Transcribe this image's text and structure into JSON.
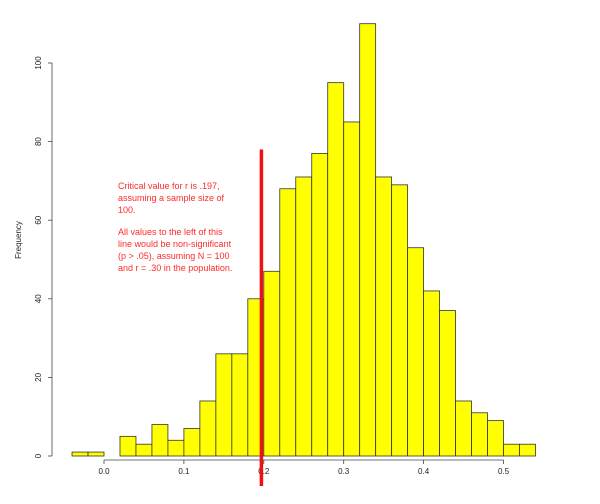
{
  "chart_data": {
    "type": "bar",
    "ylabel": "Frequency",
    "xlim": [
      -0.03,
      0.54
    ],
    "ylim": [
      0,
      110
    ],
    "x_ticks": [
      {
        "value": 0.0,
        "label": "0.0"
      },
      {
        "value": 0.1,
        "label": "0.1"
      },
      {
        "value": 0.2,
        "label": "0.2"
      },
      {
        "value": 0.3,
        "label": "0.3"
      },
      {
        "value": 0.4,
        "label": "0.4"
      },
      {
        "value": 0.5,
        "label": "0.5"
      }
    ],
    "y_ticks": [
      {
        "value": 0,
        "label": "0"
      },
      {
        "value": 20,
        "label": "20"
      },
      {
        "value": 40,
        "label": "40"
      },
      {
        "value": 60,
        "label": "60"
      },
      {
        "value": 80,
        "label": "80"
      },
      {
        "value": 100,
        "label": "100"
      }
    ],
    "bin_width": 0.02,
    "bins": [
      {
        "x0": -0.04,
        "count": 1
      },
      {
        "x0": -0.02,
        "count": 1
      },
      {
        "x0": 0.0,
        "count": 0
      },
      {
        "x0": 0.02,
        "count": 5
      },
      {
        "x0": 0.04,
        "count": 3
      },
      {
        "x0": 0.06,
        "count": 8
      },
      {
        "x0": 0.08,
        "count": 4
      },
      {
        "x0": 0.1,
        "count": 7
      },
      {
        "x0": 0.12,
        "count": 14
      },
      {
        "x0": 0.14,
        "count": 26
      },
      {
        "x0": 0.16,
        "count": 26
      },
      {
        "x0": 0.18,
        "count": 40
      },
      {
        "x0": 0.2,
        "count": 47
      },
      {
        "x0": 0.22,
        "count": 68
      },
      {
        "x0": 0.24,
        "count": 71
      },
      {
        "x0": 0.26,
        "count": 77
      },
      {
        "x0": 0.28,
        "count": 95
      },
      {
        "x0": 0.3,
        "count": 85
      },
      {
        "x0": 0.32,
        "count": 110
      },
      {
        "x0": 0.34,
        "count": 71
      },
      {
        "x0": 0.36,
        "count": 69
      },
      {
        "x0": 0.38,
        "count": 53
      },
      {
        "x0": 0.4,
        "count": 42
      },
      {
        "x0": 0.42,
        "count": 37
      },
      {
        "x0": 0.44,
        "count": 14
      },
      {
        "x0": 0.46,
        "count": 11
      },
      {
        "x0": 0.48,
        "count": 9
      },
      {
        "x0": 0.5,
        "count": 3
      },
      {
        "x0": 0.52,
        "count": 3
      }
    ],
    "critical_line": {
      "x": 0.197,
      "y_top": 78
    },
    "annotation": [
      "Critical value for r is .197, assuming a sample size of 100.",
      "All values to the left of this line would be non-significant (p > .05), assuming N = 100 and r = .30 in the population."
    ],
    "colors": {
      "bar_fill": "#ffff00",
      "bar_stroke": "#333333",
      "line": "#ee1111",
      "annotation": "#ff2a2a"
    },
    "grid": false,
    "legend": "none"
  }
}
